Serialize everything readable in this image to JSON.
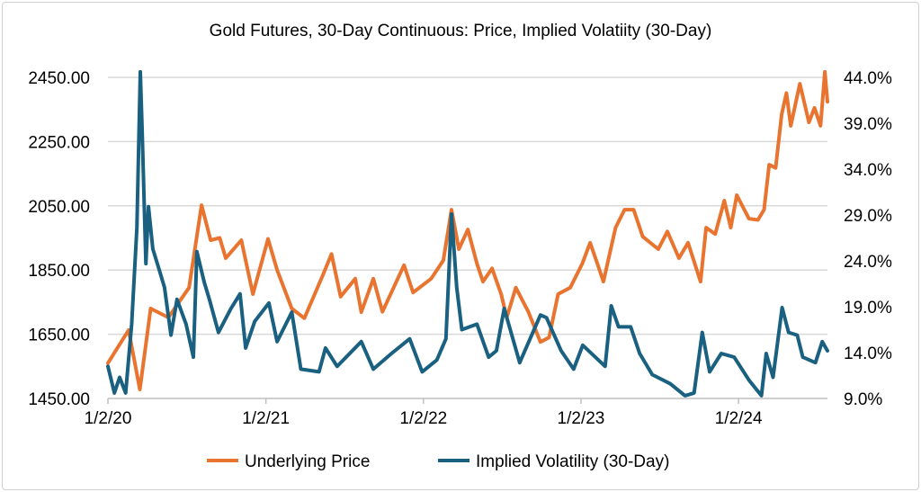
{
  "chart_data": {
    "type": "line",
    "title": "Gold Futures, 30-Day Continuous: Price, Implied Volatiity (30-Day)",
    "xlabel": "",
    "ylabel": "",
    "y2label": "",
    "x_range": [
      "2020-01-02",
      "2024-07-26"
    ],
    "x_ticks": [
      {
        "date": "2020-01-02",
        "label": "1/2/20"
      },
      {
        "date": "2021-01-02",
        "label": "1/2/21"
      },
      {
        "date": "2022-01-02",
        "label": "1/2/22"
      },
      {
        "date": "2023-01-02",
        "label": "1/2/23"
      },
      {
        "date": "2024-01-02",
        "label": "1/2/24"
      }
    ],
    "ylim": [
      1450,
      2450
    ],
    "y_ticks": [
      "1450.00",
      "1650.00",
      "1850.00",
      "2050.00",
      "2250.00",
      "2450.00"
    ],
    "y2lim": [
      9,
      44
    ],
    "y2_ticks": [
      "9.0%",
      "14.0%",
      "19.0%",
      "24.0%",
      "29.0%",
      "34.0%",
      "39.0%",
      "44.0%"
    ],
    "grid": "horizontal",
    "legend": "bottom",
    "series": [
      {
        "name": "Underlying Price",
        "axis": "left",
        "color": "#E8742F",
        "points": [
          [
            "2020-01-02",
            1560
          ],
          [
            "2020-02-19",
            1663
          ],
          [
            "2020-03-16",
            1478
          ],
          [
            "2020-04-10",
            1730
          ],
          [
            "2020-05-21",
            1702
          ],
          [
            "2020-07-08",
            1795
          ],
          [
            "2020-08-06",
            2052
          ],
          [
            "2020-08-27",
            1943
          ],
          [
            "2020-09-17",
            1950
          ],
          [
            "2020-10-01",
            1887
          ],
          [
            "2020-11-06",
            1943
          ],
          [
            "2020-12-03",
            1775
          ],
          [
            "2021-01-07",
            1947
          ],
          [
            "2021-01-28",
            1850
          ],
          [
            "2021-03-03",
            1730
          ],
          [
            "2021-04-01",
            1700
          ],
          [
            "2021-05-13",
            1831
          ],
          [
            "2021-06-03",
            1900
          ],
          [
            "2021-06-24",
            1767
          ],
          [
            "2021-07-28",
            1823
          ],
          [
            "2021-08-11",
            1719
          ],
          [
            "2021-09-08",
            1823
          ],
          [
            "2021-09-29",
            1720
          ],
          [
            "2021-11-18",
            1865
          ],
          [
            "2021-12-09",
            1780
          ],
          [
            "2022-01-20",
            1823
          ],
          [
            "2022-02-17",
            1880
          ],
          [
            "2022-03-08",
            2038
          ],
          [
            "2022-03-25",
            1915
          ],
          [
            "2022-04-15",
            1976
          ],
          [
            "2022-05-06",
            1870
          ],
          [
            "2022-05-20",
            1814
          ],
          [
            "2022-06-10",
            1855
          ],
          [
            "2022-07-01",
            1775
          ],
          [
            "2022-07-14",
            1702
          ],
          [
            "2022-08-04",
            1795
          ],
          [
            "2022-09-02",
            1720
          ],
          [
            "2022-09-30",
            1626
          ],
          [
            "2022-10-20",
            1640
          ],
          [
            "2022-11-10",
            1775
          ],
          [
            "2022-12-08",
            1795
          ],
          [
            "2023-01-05",
            1870
          ],
          [
            "2023-01-23",
            1935
          ],
          [
            "2023-02-09",
            1870
          ],
          [
            "2023-02-23",
            1814
          ],
          [
            "2023-03-23",
            1982
          ],
          [
            "2023-04-13",
            2038
          ],
          [
            "2023-05-04",
            2038
          ],
          [
            "2023-05-25",
            1954
          ],
          [
            "2023-06-30",
            1915
          ],
          [
            "2023-07-21",
            1970
          ],
          [
            "2023-08-17",
            1887
          ],
          [
            "2023-09-07",
            1935
          ],
          [
            "2023-10-06",
            1814
          ],
          [
            "2023-10-19",
            1982
          ],
          [
            "2023-11-09",
            1962
          ],
          [
            "2023-11-30",
            2066
          ],
          [
            "2023-12-15",
            1982
          ],
          [
            "2023-12-29",
            2083
          ],
          [
            "2024-01-26",
            2010
          ],
          [
            "2024-02-16",
            2006
          ],
          [
            "2024-03-01",
            2038
          ],
          [
            "2024-03-13",
            2178
          ],
          [
            "2024-03-28",
            2168
          ],
          [
            "2024-04-11",
            2335
          ],
          [
            "2024-04-22",
            2401
          ],
          [
            "2024-05-02",
            2299
          ],
          [
            "2024-05-23",
            2430
          ],
          [
            "2024-06-13",
            2310
          ],
          [
            "2024-06-26",
            2355
          ],
          [
            "2024-07-10",
            2299
          ],
          [
            "2024-07-20",
            2467
          ],
          [
            "2024-07-26",
            2374
          ]
        ]
      },
      {
        "name": "Implied Volatility (30-Day)",
        "axis": "right",
        "color": "#1A6080",
        "points": [
          [
            "2020-01-02",
            12.5
          ],
          [
            "2020-01-17",
            9.6
          ],
          [
            "2020-01-29",
            11.3
          ],
          [
            "2020-02-12",
            9.6
          ],
          [
            "2020-02-26",
            17.1
          ],
          [
            "2020-03-09",
            27.6
          ],
          [
            "2020-03-17",
            44.6
          ],
          [
            "2020-03-21",
            38.7
          ],
          [
            "2020-03-30",
            23.7
          ],
          [
            "2020-04-05",
            29.9
          ],
          [
            "2020-04-15",
            25.3
          ],
          [
            "2020-04-30",
            23.0
          ],
          [
            "2020-05-12",
            21.1
          ],
          [
            "2020-05-27",
            15.9
          ],
          [
            "2020-06-10",
            19.8
          ],
          [
            "2020-07-01",
            17.1
          ],
          [
            "2020-07-18",
            13.5
          ],
          [
            "2020-07-26",
            25.0
          ],
          [
            "2020-08-12",
            21.7
          ],
          [
            "2020-08-24",
            19.8
          ],
          [
            "2020-09-14",
            16.2
          ],
          [
            "2020-10-13",
            18.8
          ],
          [
            "2020-11-03",
            20.4
          ],
          [
            "2020-11-16",
            14.5
          ],
          [
            "2020-12-07",
            17.4
          ],
          [
            "2021-01-09",
            19.4
          ],
          [
            "2021-01-28",
            15.2
          ],
          [
            "2021-03-03",
            18.4
          ],
          [
            "2021-03-24",
            12.2
          ],
          [
            "2021-05-05",
            11.9
          ],
          [
            "2021-05-20",
            14.5
          ],
          [
            "2021-06-16",
            12.5
          ],
          [
            "2021-08-11",
            15.2
          ],
          [
            "2021-09-08",
            12.2
          ],
          [
            "2021-10-20",
            13.9
          ],
          [
            "2021-12-01",
            15.5
          ],
          [
            "2021-12-30",
            11.9
          ],
          [
            "2022-02-02",
            13.2
          ],
          [
            "2022-02-23",
            15.5
          ],
          [
            "2022-03-08",
            29.1
          ],
          [
            "2022-03-20",
            21.1
          ],
          [
            "2022-04-01",
            16.5
          ],
          [
            "2022-05-06",
            17.1
          ],
          [
            "2022-06-02",
            13.5
          ],
          [
            "2022-06-20",
            14.2
          ],
          [
            "2022-07-08",
            18.8
          ],
          [
            "2022-08-13",
            12.9
          ],
          [
            "2022-09-30",
            18.1
          ],
          [
            "2022-10-14",
            17.8
          ],
          [
            "2022-11-17",
            14.2
          ],
          [
            "2022-12-16",
            12.2
          ],
          [
            "2023-01-06",
            14.8
          ],
          [
            "2023-02-27",
            12.5
          ],
          [
            "2023-03-13",
            19.1
          ],
          [
            "2023-03-30",
            16.8
          ],
          [
            "2023-04-27",
            16.8
          ],
          [
            "2023-05-18",
            13.9
          ],
          [
            "2023-06-16",
            11.6
          ],
          [
            "2023-07-28",
            10.6
          ],
          [
            "2023-08-31",
            9.3
          ],
          [
            "2023-09-21",
            9.6
          ],
          [
            "2023-10-10",
            16.2
          ],
          [
            "2023-10-27",
            11.9
          ],
          [
            "2023-11-23",
            13.9
          ],
          [
            "2023-12-23",
            13.5
          ],
          [
            "2024-01-26",
            11.0
          ],
          [
            "2024-02-24",
            9.3
          ],
          [
            "2024-03-06",
            13.9
          ],
          [
            "2024-03-22",
            11.3
          ],
          [
            "2024-04-12",
            18.9
          ],
          [
            "2024-04-27",
            16.2
          ],
          [
            "2024-05-17",
            15.9
          ],
          [
            "2024-05-30",
            13.5
          ],
          [
            "2024-06-28",
            12.9
          ],
          [
            "2024-07-14",
            15.2
          ],
          [
            "2024-07-26",
            14.2
          ]
        ]
      }
    ]
  }
}
